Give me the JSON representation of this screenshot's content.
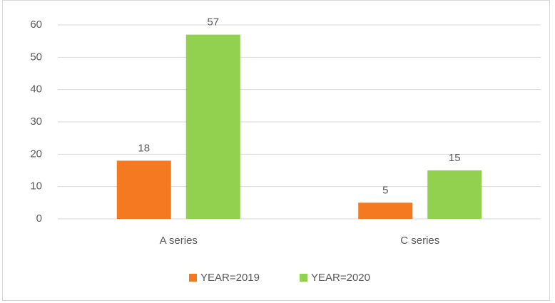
{
  "chart_data": {
    "type": "bar",
    "categories": [
      "A series",
      "C series"
    ],
    "series": [
      {
        "name": "YEAR=2019",
        "color": "#f47920",
        "values": [
          18,
          5
        ]
      },
      {
        "name": "YEAR=2020",
        "color": "#92d050",
        "values": [
          57,
          15
        ]
      }
    ],
    "ylim": [
      0,
      60
    ],
    "yticks": [
      0,
      10,
      20,
      30,
      40,
      50,
      60
    ],
    "grid": true,
    "legend": "bottom"
  }
}
